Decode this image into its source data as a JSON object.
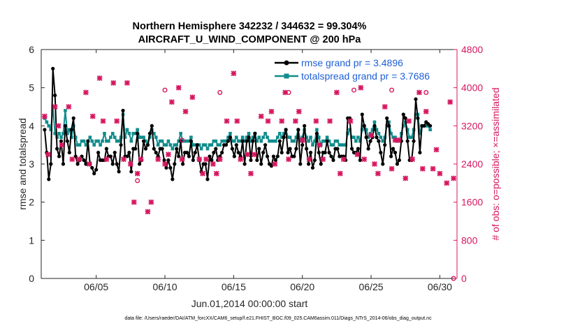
{
  "chart_data": {
    "type": "line",
    "title_line1": "Northern Hemisphere 342232 / 344632 = 99.304%",
    "title_line2": "AIRCRAFT_U_WIND_COMPONENT @ 200 hPa",
    "xlabel": "Jun.01,2014 00:00:00 start",
    "ylabel_left": "rmse and totalspread",
    "ylabel_right": "# of obs: o=possible; ×=assimilated",
    "footnote": "data file: /Users/raeder/DAI/ATM_forcXX/CAM6_setup/f.e21.FHIST_BGC.f09_025.CAM6assim.011/Diags_NTrS_2014-06/obs_diag_output.nc",
    "xlim": [
      1.0,
      31.25
    ],
    "ylim_left": [
      0,
      6
    ],
    "ylim_right": [
      0,
      4800
    ],
    "x_ticks": [
      5,
      10,
      15,
      20,
      25,
      30
    ],
    "x_tick_labels": [
      "06/05",
      "06/10",
      "06/15",
      "06/20",
      "06/25",
      "06/30"
    ],
    "y_ticks_left": [
      0,
      1,
      2,
      3,
      4,
      5,
      6
    ],
    "y_tick_labels_left": [
      "0",
      "1",
      "2",
      "3",
      "4",
      "5",
      "6"
    ],
    "y_ticks_right": [
      0,
      800,
      1600,
      2400,
      3200,
      4000,
      4800
    ],
    "y_tick_labels_right": [
      "0",
      "800",
      "1600",
      "2400",
      "3200",
      "4000",
      "4800"
    ],
    "legend": [
      {
        "label": "rmse grand pr = 3.4896",
        "color": "#000000"
      },
      {
        "label": "totalspread grand pr = 3.7686",
        "color": "#118c8c"
      }
    ],
    "series": [
      {
        "name": "rmse",
        "color": "#000000",
        "values": [
          3.9,
          3.3,
          2.6,
          3.0,
          5.5,
          4.8,
          3.4,
          3.2,
          3.6,
          3.0,
          4.0,
          3.6,
          3.3,
          3.9,
          4.2,
          3.2,
          3.0,
          3.1,
          3.2,
          3.1,
          3.0,
          3.6,
          3.0,
          2.9,
          2.75,
          2.85,
          3.3,
          3.1,
          3.1,
          3.1,
          3.4,
          3.2,
          3.2,
          3.0,
          3.3,
          3.0,
          2.8,
          3.5,
          4.4,
          3.2,
          3.2,
          3.3,
          2.8,
          3.4,
          3.4,
          3.8,
          3.0,
          3.1,
          3.6,
          3.4,
          3.5,
          3.8,
          4.0,
          3.4,
          3.3,
          3.2,
          3.4,
          3.4,
          3.1,
          2.9,
          3.1,
          2.9,
          2.6,
          3.0,
          3.4,
          3.2,
          3.6,
          3.0,
          3.3,
          3.3,
          3.2,
          3.6,
          3.1,
          3.3,
          3.5,
          3.1,
          2.8,
          3.0,
          3.0,
          2.6,
          3.2,
          3.1,
          3.3,
          3.4,
          3.1,
          3.2,
          3.3,
          3.5,
          3.5,
          3.6,
          3.7,
          3.4,
          3.2,
          3.5,
          3.3,
          3.2,
          3.6,
          3.0,
          3.6,
          3.7,
          3.1,
          3.6,
          3.8,
          3.1,
          3.4,
          3.0,
          3.3,
          3.5,
          3.2,
          3.0,
          2.95,
          3.2,
          3.1,
          3.2,
          3.6,
          3.3,
          3.7,
          3.9,
          3.3,
          3.4,
          3.2,
          3.2,
          3.4,
          3.9,
          3.0,
          3.5,
          4.0,
          3.4,
          3.0,
          3.3,
          2.9,
          3.1,
          3.8,
          3.3,
          3.0,
          3.3,
          3.3,
          3.6,
          3.3,
          3.2,
          3.1,
          3.4,
          3.4,
          3.2,
          3.2,
          3.2,
          3.1,
          4.2,
          4.2,
          3.4,
          3.3,
          3.3,
          3.4,
          3.1,
          4.3,
          4.0,
          3.7,
          3.4,
          3.6,
          3.7,
          4.0,
          3.7,
          3.6,
          3.3,
          3.0,
          3.5,
          4.2,
          4.0,
          3.2,
          3.4,
          3.3,
          3.0,
          3.1,
          3.6,
          4.3,
          4.2,
          3.6,
          3.1,
          3.1,
          3.6,
          4.7,
          4.2,
          3.3,
          4.0,
          4.0,
          4.1,
          4.05,
          4.0
        ]
      },
      {
        "name": "totalspread",
        "color": "#118c8c",
        "values": [
          4.2,
          4.1,
          4.0,
          3.9,
          4.5,
          3.8,
          3.7,
          3.8,
          3.7,
          3.8,
          4.4,
          3.8,
          3.9,
          3.7,
          4.0,
          3.7,
          3.5,
          3.5,
          3.6,
          3.6,
          3.5,
          3.6,
          3.7,
          3.6,
          3.5,
          3.6,
          3.6,
          3.5,
          3.6,
          3.8,
          3.6,
          3.6,
          3.7,
          3.8,
          3.7,
          3.6,
          3.6,
          3.7,
          4.3,
          3.7,
          3.9,
          3.8,
          3.6,
          3.8,
          3.8,
          3.9,
          3.7,
          3.7,
          3.7,
          3.6,
          3.5,
          3.7,
          3.9,
          3.8,
          3.7,
          3.5,
          3.6,
          3.6,
          3.5,
          3.5,
          3.6,
          3.5,
          3.4,
          3.5,
          3.5,
          3.6,
          3.8,
          3.6,
          3.6,
          3.6,
          3.6,
          3.7,
          3.5,
          3.5,
          3.5,
          3.5,
          3.4,
          3.5,
          3.5,
          3.4,
          3.5,
          3.5,
          3.6,
          3.6,
          3.5,
          3.5,
          3.6,
          3.6,
          3.6,
          3.7,
          3.8,
          3.6,
          3.6,
          3.7,
          3.6,
          3.6,
          3.7,
          3.6,
          3.7,
          3.8,
          3.6,
          3.7,
          3.8,
          3.6,
          3.7,
          3.6,
          3.7,
          3.8,
          3.7,
          3.6,
          3.6,
          3.6,
          3.6,
          3.7,
          3.8,
          3.7,
          3.8,
          3.9,
          3.7,
          3.7,
          3.6,
          3.6,
          3.7,
          3.9,
          3.6,
          3.7,
          3.9,
          3.7,
          3.6,
          3.7,
          3.5,
          3.6,
          3.9,
          3.7,
          3.5,
          3.6,
          3.6,
          3.7,
          3.6,
          3.5,
          3.5,
          3.6,
          3.6,
          3.5,
          3.5,
          3.5,
          3.5,
          3.8,
          3.9,
          3.7,
          3.7,
          3.6,
          3.7,
          3.6,
          3.9,
          4.0,
          3.9,
          3.7,
          3.8,
          3.9,
          4.1,
          3.9,
          3.8,
          3.7,
          3.6,
          3.7,
          4.0,
          4.1,
          3.8,
          3.7,
          3.7,
          3.6,
          3.6,
          3.8,
          4.0,
          4.1,
          3.9,
          3.7,
          3.7,
          3.9,
          4.3,
          4.3,
          3.8,
          4.0,
          4.0,
          4.0,
          4.0,
          3.9
        ]
      },
      {
        "name": "obs_assimilated",
        "color": "#d6175f",
        "x": [
          1.25,
          1.5,
          2.0,
          2.25,
          2.5,
          3.0,
          3.25,
          3.75,
          4.25,
          4.5,
          4.75,
          5.25,
          5.5,
          5.75,
          6.25,
          6.5,
          7.0,
          7.25,
          7.5,
          7.75,
          8.0,
          8.25,
          8.75,
          9.0,
          9.5,
          10.0,
          10.25,
          10.5,
          11.0,
          11.25,
          11.5,
          12.0,
          12.5,
          12.75,
          13.0,
          13.5,
          13.75,
          14.0,
          14.5,
          15.0,
          15.25,
          15.5,
          16.0,
          16.25,
          16.5,
          17.0,
          17.5,
          17.75,
          18.0,
          18.5,
          18.75,
          19.0,
          19.5,
          19.75,
          20.0,
          20.5,
          21.0,
          21.25,
          21.5,
          22.0,
          22.5,
          22.75,
          23.0,
          23.5,
          24.0,
          24.25,
          24.5,
          25.0,
          25.25,
          25.5,
          26.0,
          26.5,
          26.75,
          27.0,
          27.5,
          27.75,
          28.0,
          28.5,
          28.75,
          29.0,
          29.5,
          29.75,
          30.0,
          30.5,
          30.75,
          31.0
        ],
        "values": [
          3400,
          2600,
          3600,
          3200,
          2800,
          3600,
          2500,
          2500,
          3900,
          2400,
          3400,
          4200,
          3300,
          2500,
          4100,
          3300,
          2500,
          4100,
          2400,
          1600,
          2200,
          2500,
          1400,
          1600,
          2500,
          2400,
          2600,
          3700,
          4000,
          2500,
          3500,
          3800,
          2500,
          2200,
          2500,
          2400,
          2200,
          2500,
          3300,
          4300,
          3300,
          2500,
          2600,
          2200,
          2600,
          3400,
          3300,
          3500,
          2400,
          3300,
          3900,
          2500,
          3300,
          3500,
          2900,
          2500,
          3300,
          2800,
          2500,
          3300,
          3900,
          2200,
          2500,
          3300,
          2600,
          4000,
          2500,
          3000,
          2400,
          2200,
          3600,
          2300,
          2900,
          2900,
          2100,
          3300,
          2500,
          3900,
          2300,
          3500,
          2300,
          2700,
          2200,
          2000,
          3700,
          2100
        ]
      },
      {
        "name": "obs_possible",
        "color": "#d6175f",
        "x": [
          8.0,
          10.0,
          11.25,
          14.0,
          19.0,
          23.75,
          26.5,
          29.0,
          31.0
        ],
        "values": [
          2050,
          3950,
          2900,
          3900,
          3900,
          3950,
          3950,
          3900,
          0
        ]
      }
    ]
  }
}
